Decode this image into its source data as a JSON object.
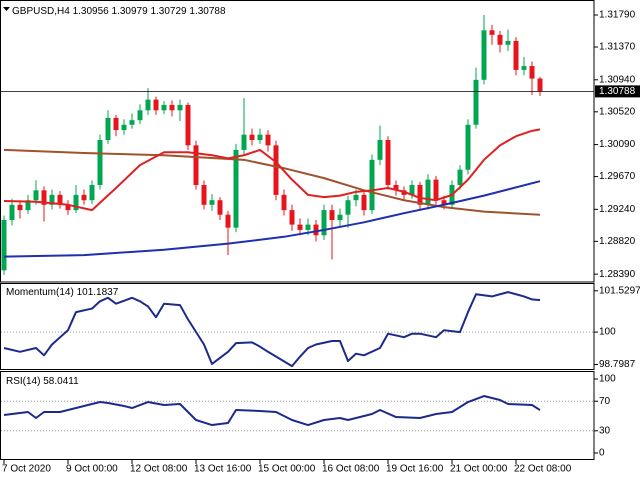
{
  "chart_data": [
    {
      "type": "candlestick",
      "title": "GBPUSD,H4",
      "xlim": [
        -0.5,
        73.75
      ],
      "xticks": [
        {
          "value": 0,
          "label": "7 Oct 2020"
        },
        {
          "value": 8,
          "label": "9 Oct 00:00"
        },
        {
          "value": 16,
          "label": "12 Oct 08:00"
        },
        {
          "value": 24,
          "label": "13 Oct 16:00"
        },
        {
          "value": 32,
          "label": "15 Oct 00:00"
        },
        {
          "value": 40,
          "label": "16 Oct 08:00"
        },
        {
          "value": 48,
          "label": "19 Oct 16:00"
        },
        {
          "value": 56,
          "label": "21 Oct 00:00"
        },
        {
          "value": 64,
          "label": "22 Oct 08:00"
        }
      ],
      "ylim": [
        1.283,
        1.31974
      ],
      "yticks": [
        {
          "value": 1.2839,
          "label": "1.28390"
        },
        {
          "value": 1.2882,
          "label": "1.28820"
        },
        {
          "value": 1.2924,
          "label": "1.29240"
        },
        {
          "value": 1.2967,
          "label": "1.29670"
        },
        {
          "value": 1.3009,
          "label": "1.30090"
        },
        {
          "value": 1.3052,
          "label": "1.30520"
        },
        {
          "value": 1.3094,
          "label": "1.30940"
        },
        {
          "value": 1.3137,
          "label": "1.31370"
        },
        {
          "value": 1.3179,
          "label": "1.31790"
        }
      ],
      "up_color": "#00a650",
      "down_color": "#e8141c",
      "price_line": true,
      "open": [
        1.2844,
        1.291,
        1.293,
        1.2923,
        1.2936,
        1.2949,
        1.293,
        1.2943,
        1.293,
        1.2923,
        1.2943,
        1.2936,
        1.2956,
        1.3015,
        1.3044,
        1.3028,
        1.3035,
        1.3041,
        1.3054,
        1.3068,
        1.3054,
        1.3061,
        1.3054,
        1.3061,
        1.3008,
        1.2956,
        1.293,
        1.2936,
        1.2917,
        1.29,
        1.3002,
        1.3022,
        1.3015,
        1.3022,
        1.3008,
        1.2943,
        1.2923,
        1.2904,
        1.2897,
        1.2904,
        1.289,
        1.2923,
        1.291,
        1.2917,
        1.2936,
        1.2943,
        1.2923,
        1.2989,
        1.3015,
        1.2956,
        1.2949,
        1.2943,
        1.2956,
        1.293,
        1.2963,
        1.2936,
        1.293,
        1.2956,
        1.2976,
        1.3035,
        1.3094,
        1.3159,
        1.3153,
        1.314,
        1.3145,
        1.3107,
        1.3112,
        1.30956
      ],
      "high": [
        1.2916,
        1.2938,
        1.2936,
        1.2943,
        1.2962,
        1.2954,
        1.295,
        1.2948,
        1.2936,
        1.2956,
        1.295,
        1.2962,
        1.3022,
        1.3054,
        1.3048,
        1.3042,
        1.305,
        1.3062,
        1.3083,
        1.3072,
        1.3066,
        1.3067,
        1.3068,
        1.3064,
        1.3014,
        1.2962,
        1.2944,
        1.294,
        1.2922,
        1.301,
        1.307,
        1.303,
        1.303,
        1.3028,
        1.3014,
        1.295,
        1.293,
        1.2912,
        1.2912,
        1.291,
        1.293,
        1.293,
        1.2925,
        1.2942,
        1.295,
        1.2948,
        1.2996,
        1.3034,
        1.302,
        1.2962,
        1.2954,
        1.2962,
        1.296,
        1.297,
        1.2968,
        1.2942,
        1.2962,
        1.2982,
        1.3042,
        1.311,
        1.3179,
        1.3166,
        1.3158,
        1.316,
        1.315,
        1.3124,
        1.3118,
        1.30979
      ],
      "low": [
        1.2838,
        1.2903,
        1.2912,
        1.2918,
        1.293,
        1.2908,
        1.2924,
        1.2925,
        1.2917,
        1.2919,
        1.293,
        1.2931,
        1.295,
        1.301,
        1.302,
        1.3022,
        1.303,
        1.3036,
        1.3048,
        1.3048,
        1.3049,
        1.3046,
        1.304,
        1.3002,
        1.295,
        1.2924,
        1.2922,
        1.291,
        1.2864,
        1.2894,
        1.2996,
        1.3008,
        1.301,
        1.3,
        1.2936,
        1.2916,
        1.2896,
        1.289,
        1.289,
        1.2882,
        1.2884,
        1.2858,
        1.29,
        1.29,
        1.2928,
        1.2916,
        1.2918,
        1.2982,
        1.295,
        1.2942,
        1.2936,
        1.2938,
        1.2922,
        1.2924,
        1.293,
        1.2924,
        1.2926,
        1.295,
        1.297,
        1.303,
        1.3088,
        1.314,
        1.313,
        1.3132,
        1.31,
        1.31,
        1.3074,
        1.30729
      ],
      "close": [
        1.291,
        1.293,
        1.2923,
        1.2936,
        1.2949,
        1.293,
        1.2943,
        1.293,
        1.2923,
        1.2943,
        1.2936,
        1.2956,
        1.3015,
        1.3044,
        1.3028,
        1.3035,
        1.3041,
        1.3054,
        1.3068,
        1.3054,
        1.3061,
        1.3054,
        1.3061,
        1.3008,
        1.2956,
        1.293,
        1.2936,
        1.2917,
        1.29,
        1.3002,
        1.3022,
        1.3015,
        1.3022,
        1.3008,
        1.2943,
        1.2923,
        1.2904,
        1.2897,
        1.2904,
        1.289,
        1.2923,
        1.291,
        1.2917,
        1.2936,
        1.2943,
        1.2923,
        1.2989,
        1.3015,
        1.2956,
        1.2949,
        1.2943,
        1.2956,
        1.293,
        1.2963,
        1.2936,
        1.293,
        1.2956,
        1.2976,
        1.3035,
        1.3094,
        1.3159,
        1.3153,
        1.314,
        1.3145,
        1.3107,
        1.3112,
        1.30956,
        1.30788
      ],
      "series": [
        {
          "color": "#a0522d",
          "x": [
            0,
            10,
            20,
            30,
            35,
            40,
            45,
            50,
            55,
            60,
            67
          ],
          "values": [
            1.3002,
            1.2998,
            1.2995,
            1.2989,
            1.2978,
            1.2965,
            1.2949,
            1.2936,
            1.2927,
            1.2921,
            1.2917
          ]
        },
        {
          "color": "#1f2fb0",
          "x": [
            0,
            10,
            20,
            28,
            35,
            40,
            45,
            50,
            55,
            60,
            67
          ],
          "values": [
            1.2862,
            1.2864,
            1.2871,
            1.2879,
            1.2888,
            1.2897,
            1.2907,
            1.2919,
            1.293,
            1.2942,
            1.2961
          ]
        },
        {
          "color": "#e02020",
          "x": [
            0,
            4,
            8,
            11,
            14,
            17,
            20,
            23,
            26,
            28,
            30,
            32,
            34,
            36,
            38,
            40,
            42,
            44,
            46,
            48,
            50,
            52,
            54,
            56,
            58,
            60,
            62,
            64,
            66,
            67
          ],
          "values": [
            1.2935,
            1.2934,
            1.293,
            1.2923,
            1.2952,
            1.2982,
            1.2999,
            1.2999,
            1.2995,
            1.2991,
            1.2995,
            1.3002,
            1.2986,
            1.2963,
            1.2943,
            1.294,
            1.2942,
            1.2947,
            1.2949,
            1.2952,
            1.2947,
            1.2939,
            1.2936,
            1.2943,
            1.2963,
            1.2989,
            1.3008,
            1.302,
            1.3027,
            1.3029
          ]
        }
      ]
    },
    {
      "type": "line",
      "title": "Momentum(14)",
      "ylim": [
        98.67,
        101.78
      ],
      "yticks": [
        98.7987,
        100,
        101.5297
      ],
      "levels": [
        100
      ],
      "series": [
        {
          "color": "#1c2a8c",
          "x": [
            0,
            2,
            4,
            5,
            6,
            8,
            9,
            11,
            12,
            13,
            14,
            16,
            17,
            18,
            19,
            20,
            22,
            23,
            25,
            26,
            28,
            29,
            31,
            32,
            33,
            36,
            37,
            38,
            39,
            41,
            42,
            43,
            44,
            45,
            47,
            48,
            50,
            51,
            52,
            54,
            55,
            57,
            58,
            59,
            61,
            62,
            63,
            64,
            65,
            66,
            67
          ],
          "values": [
            99.41,
            99.27,
            99.41,
            99.14,
            99.54,
            100.07,
            100.74,
            100.87,
            101.14,
            101.27,
            101.05,
            101.27,
            101.14,
            100.95,
            100.55,
            101.05,
            101.0,
            100.47,
            99.54,
            98.82,
            99.27,
            99.59,
            99.62,
            99.46,
            99.27,
            98.74,
            99.09,
            99.41,
            99.54,
            99.67,
            99.67,
            98.93,
            99.2,
            99.14,
            99.41,
            99.94,
            99.81,
            99.94,
            99.94,
            99.81,
            100.07,
            100.0,
            100.74,
            101.4,
            101.32,
            101.4,
            101.48,
            101.4,
            101.32,
            101.21,
            101.1837
          ]
        }
      ]
    },
    {
      "type": "line",
      "title": "RSI(14)",
      "ylim": [
        -6.8,
        109.5
      ],
      "yticks": [
        0,
        30,
        70,
        100
      ],
      "levels": [
        30,
        70
      ],
      "series": [
        {
          "color": "#1c2a8c",
          "x": [
            0,
            3,
            4,
            5,
            7,
            9,
            12,
            13,
            15,
            16,
            18,
            20,
            22,
            24,
            26,
            28,
            29,
            32,
            34,
            36,
            38,
            40,
            42,
            43,
            46,
            47,
            49,
            52,
            54,
            56,
            58,
            60,
            62,
            63,
            66,
            67
          ],
          "values": [
            51.4,
            55.4,
            47.3,
            55.4,
            55.4,
            60.8,
            68.9,
            67.6,
            63.5,
            60.8,
            68.9,
            64.9,
            66.2,
            44.6,
            37.8,
            40.5,
            58.1,
            56.8,
            55.4,
            44.6,
            37.8,
            44.6,
            47.3,
            44.6,
            52.7,
            58.1,
            48.6,
            47.3,
            52.7,
            55.4,
            68.9,
            77.0,
            71.6,
            66.2,
            64.9,
            58.0411
          ]
        }
      ]
    }
  ]
}
